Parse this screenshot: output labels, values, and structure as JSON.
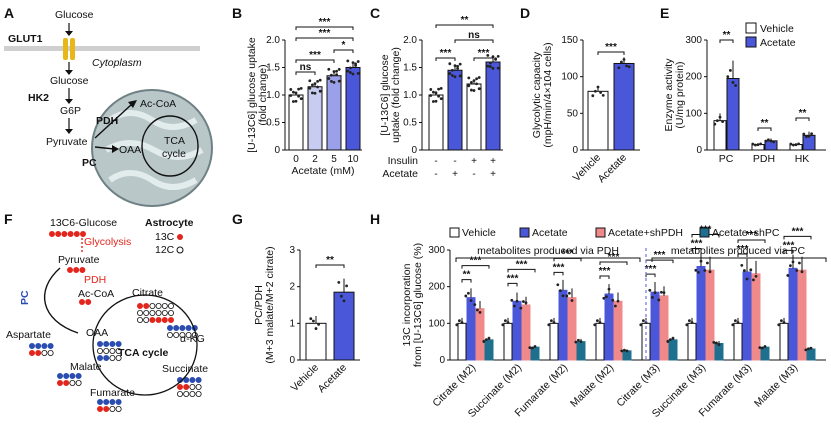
{
  "panel_labels": [
    "A",
    "B",
    "C",
    "D",
    "E",
    "F",
    "G",
    "H"
  ],
  "colors": {
    "vehicle": "#ffffff",
    "acetate": "#4b57d9",
    "acetate_shPDH": "#f08a8a",
    "acetate_shPC": "#1f6f8f",
    "light_lavender": "#c9ccf1",
    "mid_lavender": "#9aa0ea",
    "red": "#e3261d",
    "blue": "#2b4db0",
    "mito": "#b9c7c9"
  },
  "panelA": {
    "glucose_out": "Glucose",
    "glut1": "GLUT1",
    "cytoplasm": "Cytoplasm",
    "glucose_in": "Glucose",
    "hk2": "HK2",
    "g6p": "G6P",
    "pyruvate": "Pyruvate",
    "pdh": "PDH",
    "pc": "PC",
    "accoa": "Ac-CoA",
    "oaa": "OAA",
    "tca1": "TCA",
    "tca2": "cycle"
  },
  "panelF": {
    "title_glucose": "13C6-Glucose",
    "astrocyte": "Astrocyte",
    "glycolysis": "Glycolysis",
    "c13": "13C",
    "c12": "12C",
    "pyruvate": "Pyruvate",
    "pdh": "PDH",
    "accoa": "Ac-CoA",
    "pc": "PC",
    "citrate": "Citrate",
    "aspartate": "Aspartate",
    "oaa": "OAA",
    "akg": "α-KG",
    "tca": "TCA cycle",
    "malate": "Malate",
    "succinate": "Succinate",
    "fumarate": "Fumarate"
  },
  "chart_data": [
    {
      "panel": "B",
      "type": "bar",
      "categories": [
        "0",
        "2",
        "5",
        "10"
      ],
      "values": [
        1.0,
        1.15,
        1.35,
        1.5
      ],
      "xlabel": "Acetate (mM)",
      "ylabel": "[U-13C6] glucose uptake (fold change)",
      "ylim": [
        0,
        2.0
      ],
      "yticks": [
        "0",
        "0.5",
        "1.0",
        "1.5",
        "2.0"
      ],
      "significance": [
        "ns",
        "***",
        "*",
        "***",
        "***"
      ]
    },
    {
      "panel": "C",
      "type": "bar",
      "categories": [
        "-/-",
        "-/+",
        "+/-",
        "+/+"
      ],
      "insulin": [
        "-",
        "-",
        "+",
        "+"
      ],
      "acetate": [
        "-",
        "+",
        "-",
        "+"
      ],
      "row_labels": [
        "Insulin",
        "Acetate"
      ],
      "values": [
        1.0,
        1.45,
        1.2,
        1.6
      ],
      "ylabel": "[U-13C6] glucose uptake (fold change)",
      "ylim": [
        0,
        2.0
      ],
      "yticks": [
        "0",
        "0.5",
        "1.0",
        "1.5",
        "2.0"
      ],
      "significance": [
        "**",
        "***",
        "ns",
        "***"
      ]
    },
    {
      "panel": "D",
      "type": "bar",
      "categories": [
        "Vehicle",
        "Acetate"
      ],
      "values": [
        80,
        118
      ],
      "ylabel": "Glycolytic capacity (mpH/min/4×104 cells)",
      "ylim": [
        0,
        150
      ],
      "yticks": [
        "0",
        "50",
        "100",
        "150"
      ],
      "significance": [
        "***"
      ]
    },
    {
      "panel": "E",
      "type": "bar",
      "categories": [
        "PC",
        "PDH",
        "HK"
      ],
      "series": [
        {
          "name": "Vehicle",
          "values": [
            80,
            15,
            15
          ]
        },
        {
          "name": "Acetate",
          "values": [
            195,
            25,
            40
          ]
        }
      ],
      "ylabel": "Enzyme activity (U/mg protein)",
      "ylim": [
        0,
        300
      ],
      "yticks": [
        "0",
        "100",
        "200",
        "300"
      ],
      "significance": [
        "**",
        "**",
        "**"
      ]
    },
    {
      "panel": "G",
      "type": "bar",
      "categories": [
        "Vehicle",
        "Acetate"
      ],
      "values": [
        1.0,
        1.85
      ],
      "ylabel": "PC/PDH (M+3 malate/M+2 citrate)",
      "ylim": [
        0,
        3
      ],
      "yticks": [
        "0",
        "1",
        "2",
        "3"
      ],
      "significance": [
        "**"
      ]
    },
    {
      "panel": "H",
      "type": "bar",
      "categories": [
        "Citrate (M2)",
        "Succinate (M2)",
        "Fumarate (M2)",
        "Malate (M2)",
        "Citrate (M3)",
        "Succinate (M3)",
        "Fumarate (M3)",
        "Malate (M3)"
      ],
      "series": [
        {
          "name": "Vehicle",
          "values": [
            100,
            100,
            100,
            100,
            100,
            100,
            100,
            100
          ]
        },
        {
          "name": "Acetate",
          "values": [
            170,
            160,
            190,
            180,
            185,
            255,
            240,
            250
          ]
        },
        {
          "name": "Acetate+shPDH",
          "values": [
            140,
            150,
            170,
            160,
            175,
            245,
            235,
            245
          ]
        },
        {
          "name": "Acetate+shPC",
          "values": [
            55,
            35,
            50,
            25,
            55,
            45,
            35,
            30
          ]
        }
      ],
      "ylabel": "13C incorporation from [U-13C6] glucose (%)",
      "ylim": [
        0,
        300
      ],
      "yticks": [
        "0",
        "100",
        "200",
        "300"
      ],
      "group_labels": [
        "metabolites produced via PDH",
        "metabolites produced via PC"
      ],
      "significance": [
        "**",
        "***",
        "***",
        "***",
        "***",
        "***",
        "***",
        "***",
        "***",
        "***",
        "***",
        "***",
        "***",
        "***",
        "***",
        "***"
      ]
    }
  ]
}
